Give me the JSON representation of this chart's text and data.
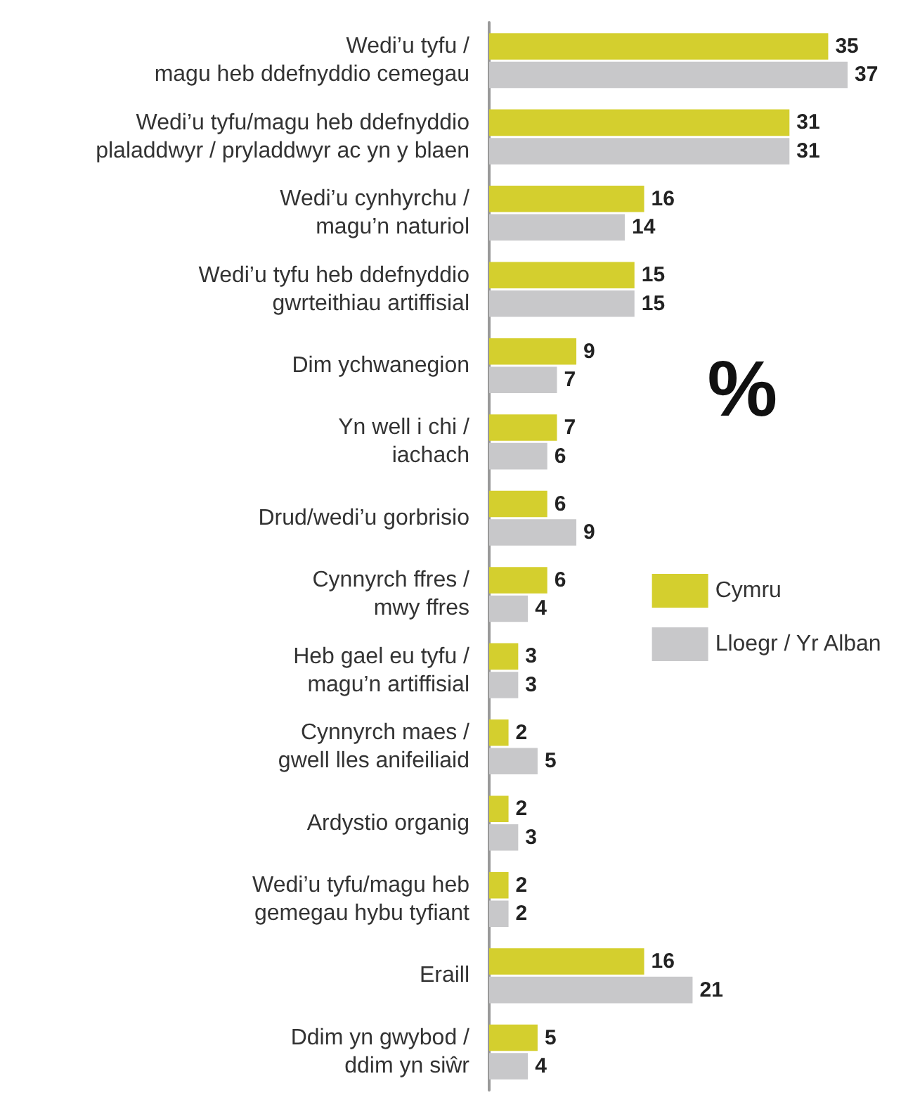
{
  "chart_data": {
    "type": "bar",
    "orientation": "horizontal",
    "categories": [
      "Wedi’u tyfu /\nmagu heb ddefnyddio cemegau",
      "Wedi’u tyfu/magu heb ddefnyddio\nplaladdwyr / pryladdwyr ac yn y blaen",
      "Wedi’u cynhyrchu /\nmagu’n naturiol",
      "Wedi’u tyfu heb ddefnyddio\ngwrteithiau artiffisial",
      "Dim ychwanegion",
      "Yn well i chi /\niachach",
      "Drud/wedi’u gorbrisio",
      "Cynnyrch ffres /\nmwy ffres",
      "Heb gael eu tyfu /\nmagu’n artiffisial",
      "Cynnyrch maes /\ngwell lles anifeiliaid",
      "Ardystio organig",
      "Wedi’u tyfu/magu heb\ngemegau hybu tyfiant",
      "Eraill",
      "Ddim yn gwybod /\nddim yn siŵr"
    ],
    "series": [
      {
        "name": "Cymru",
        "color": "#d4cf2e",
        "values": [
          35,
          31,
          16,
          15,
          9,
          7,
          6,
          6,
          3,
          2,
          2,
          2,
          16,
          5
        ]
      },
      {
        "name": "Lloegr / Yr Alban",
        "color": "#c8c8ca",
        "values": [
          37,
          31,
          14,
          15,
          7,
          6,
          9,
          4,
          3,
          5,
          3,
          2,
          21,
          4
        ]
      }
    ],
    "data_labels": true,
    "legend": "right",
    "annotations": [
      "%"
    ]
  }
}
